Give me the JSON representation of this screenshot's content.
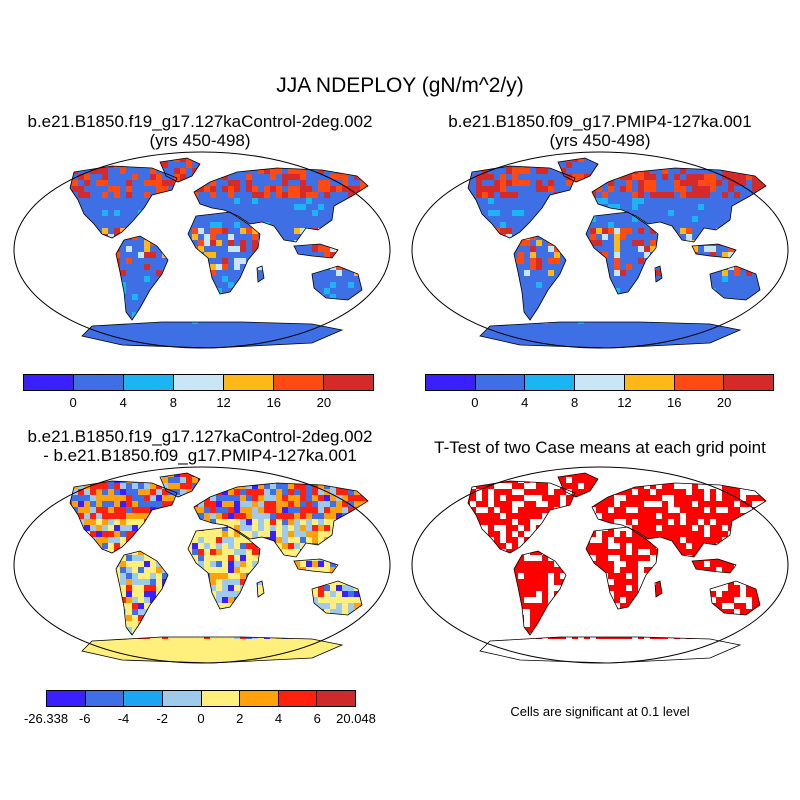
{
  "title": "JJA NDEPLOY (gN/m^2/y)",
  "panels": [
    {
      "id": "case1",
      "title_line1": "b.e21.B1850.f19_g17.127kaControl-2deg.002",
      "title_line2": "(yrs 450-498)"
    },
    {
      "id": "case2",
      "title_line1": "b.e21.B1850.f09_g17.PMIP4-127ka.001",
      "title_line2": "(yrs 450-498)"
    },
    {
      "id": "diff",
      "title_line1": "b.e21.B1850.f19_g17.127kaControl-2deg.002",
      "title_line2": "- b.e21.B1850.f09_g17.PMIP4-127ka.001"
    },
    {
      "id": "ttest",
      "title_line1": "T-Test of two Case means at each grid point"
    }
  ],
  "colorbar_main": {
    "colors": [
      "#3a1fff",
      "#3f6fe4",
      "#1cb4f2",
      "#c8e6f6",
      "#ffb818",
      "#ff4a12",
      "#d42a2a"
    ],
    "labels": [
      "0",
      "4",
      "8",
      "12",
      "16",
      "20"
    ]
  },
  "colorbar_diff": {
    "colors": [
      "#3a1fff",
      "#3f6fe4",
      "#1ca6f2",
      "#9fcbea",
      "#fff07e",
      "#ffa10a",
      "#ff2010",
      "#cf2a2a"
    ],
    "labels": [
      "-26.338",
      "-6",
      "-4",
      "-2",
      "0",
      "2",
      "4",
      "6",
      "20.048"
    ]
  },
  "significance_note": "Cells are significant at 0.1 level",
  "colors": {
    "land_blank": "#ffffff",
    "ttest_sig": "#ff0000",
    "antarctica_case": "#3f6fe4",
    "antarctica_diff": "#fff07e"
  }
}
